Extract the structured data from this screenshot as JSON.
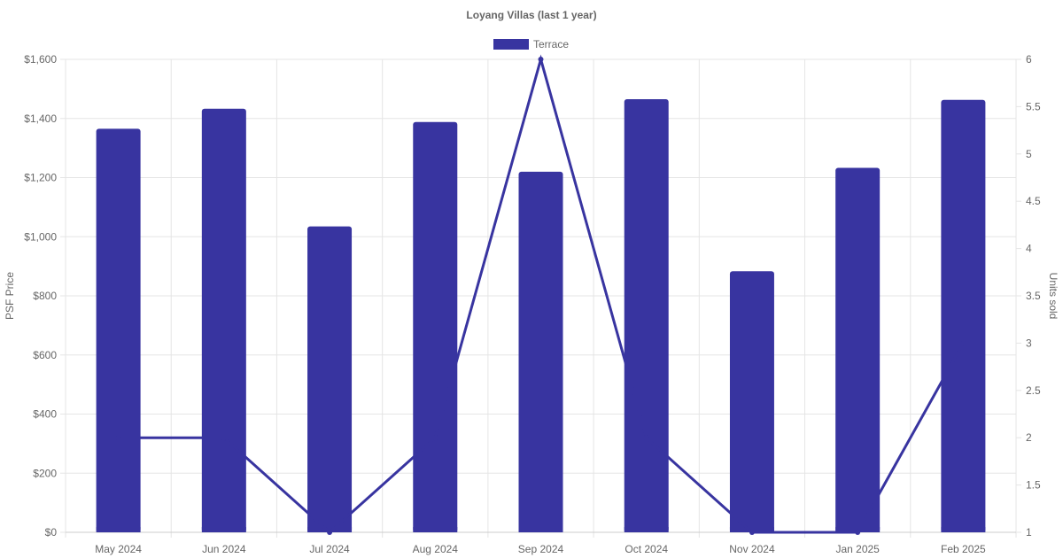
{
  "chart_data": {
    "type": "bar",
    "title": "Loyang Villas (last 1 year)",
    "categories": [
      "May 2024",
      "Jun 2024",
      "Jul 2024",
      "Aug 2024",
      "Sep 2024",
      "Oct 2024",
      "Nov 2024",
      "Jan 2025",
      "Feb 2025"
    ],
    "series": [
      {
        "name": "Terrace",
        "type": "bar",
        "axis": "left",
        "values": [
          1365,
          1433,
          1035,
          1388,
          1220,
          1465,
          883,
          1233,
          1463
        ]
      },
      {
        "type": "line",
        "axis": "right",
        "values": [
          2,
          2,
          1,
          2,
          6,
          2,
          1,
          1,
          3
        ]
      }
    ],
    "ylabel": "PSF Price",
    "y2label": "Units sold",
    "ylim": [
      0,
      1600
    ],
    "y2lim": [
      1,
      6
    ],
    "yticks": [
      "$0",
      "$200",
      "$400",
      "$600",
      "$800",
      "$1,000",
      "$1,200",
      "$1,400",
      "$1,600"
    ],
    "y2ticks": [
      "1",
      "1.5",
      "2",
      "2.5",
      "3",
      "3.5",
      "4",
      "4.5",
      "5",
      "5.5",
      "6"
    ],
    "legend_position": "top",
    "grid": true,
    "colors": {
      "series": "#3834A0",
      "grid": "#e5e5e5",
      "text": "#666666"
    }
  }
}
